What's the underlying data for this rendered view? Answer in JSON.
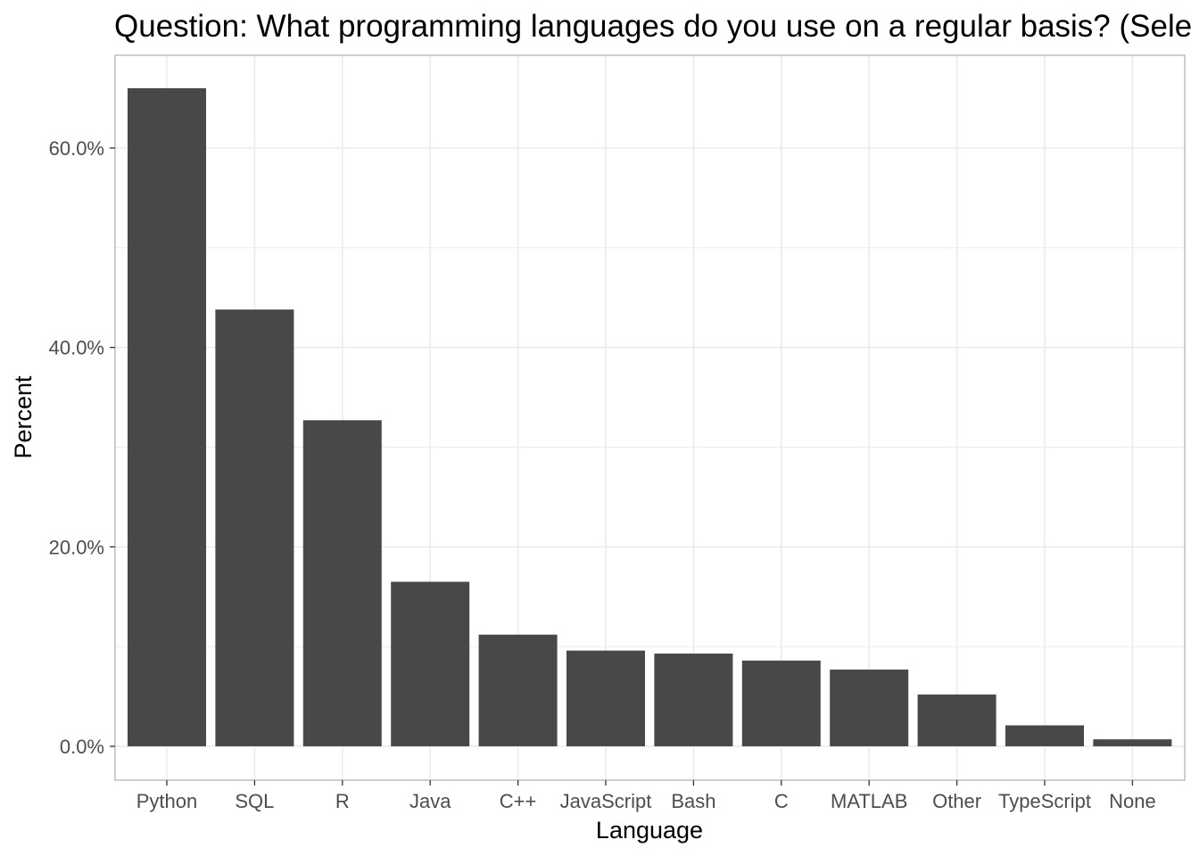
{
  "chart_data": {
    "type": "bar",
    "title": "Question: What programming languages do you use on a regular basis? (Sele",
    "xlabel": "Language",
    "ylabel": "Percent",
    "categories": [
      "Python",
      "SQL",
      "R",
      "Java",
      "C++",
      "JavaScript",
      "Bash",
      "C",
      "MATLAB",
      "Other",
      "TypeScript",
      "None"
    ],
    "values": [
      66.0,
      43.8,
      32.7,
      16.5,
      11.2,
      9.6,
      9.3,
      8.6,
      7.7,
      5.2,
      2.1,
      0.7
    ],
    "ylim": [
      -3.4,
      69.3
    ],
    "yticks": [
      0,
      20,
      40,
      60
    ],
    "ytick_labels": [
      "0.0%",
      "20.0%",
      "40.0%",
      "60.0%"
    ],
    "grid": true,
    "legend": "none",
    "bar_color": "#484848",
    "panel_border_color": "#b3b3b3",
    "grid_color": "#ebebeb"
  }
}
